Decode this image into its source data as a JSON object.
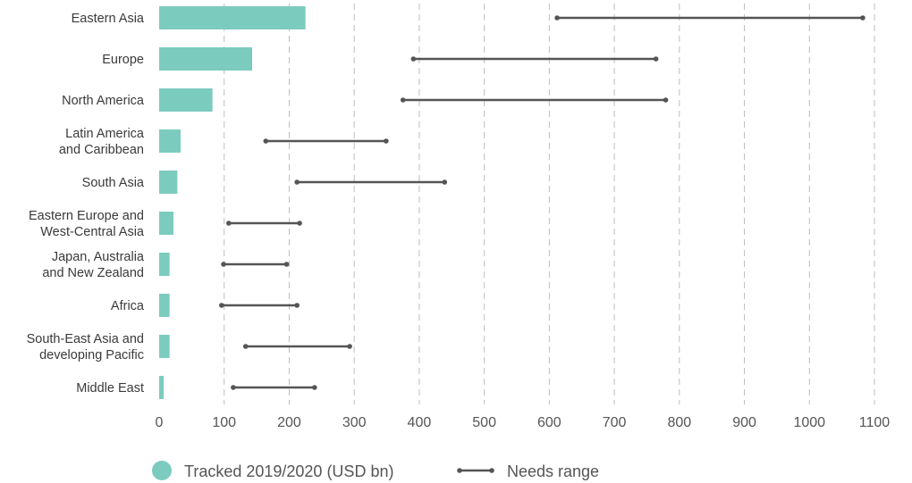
{
  "chart_data": {
    "type": "bar",
    "orientation": "horizontal",
    "categories": [
      [
        "Eastern Asia"
      ],
      [
        "Europe"
      ],
      [
        "North America"
      ],
      [
        "Latin America",
        "and Caribbean"
      ],
      [
        "South Asia"
      ],
      [
        "Eastern Europe and",
        "West-Central Asia"
      ],
      [
        "Japan, Australia",
        "and New Zealand"
      ],
      [
        "Africa"
      ],
      [
        "South-East Asia and",
        "developing Pacific"
      ],
      [
        "Middle East"
      ]
    ],
    "series": [
      {
        "name": "Tracked 2019/2020 (USD bn)",
        "type": "bar",
        "values": [
          225,
          143,
          82,
          33,
          28,
          22,
          16,
          16,
          16,
          7
        ]
      },
      {
        "name": "Needs range",
        "type": "range",
        "ranges": [
          [
            612,
            1082
          ],
          [
            391,
            764
          ],
          [
            375,
            779
          ],
          [
            164,
            349
          ],
          [
            212,
            439
          ],
          [
            107,
            216
          ],
          [
            99,
            196
          ],
          [
            96,
            212
          ],
          [
            133,
            293
          ],
          [
            114,
            239
          ]
        ]
      }
    ],
    "xlim": [
      0,
      1100
    ],
    "xticks": [
      "0",
      "100",
      "200",
      "300",
      "400",
      "500",
      "600",
      "700",
      "800",
      "900",
      "1000",
      "1100"
    ],
    "grid": "vertical-dashed",
    "legend": "bottom-center",
    "colors": {
      "bar": "#7ccbbf",
      "range": "#555555",
      "grid": "#bdbdbd"
    }
  }
}
